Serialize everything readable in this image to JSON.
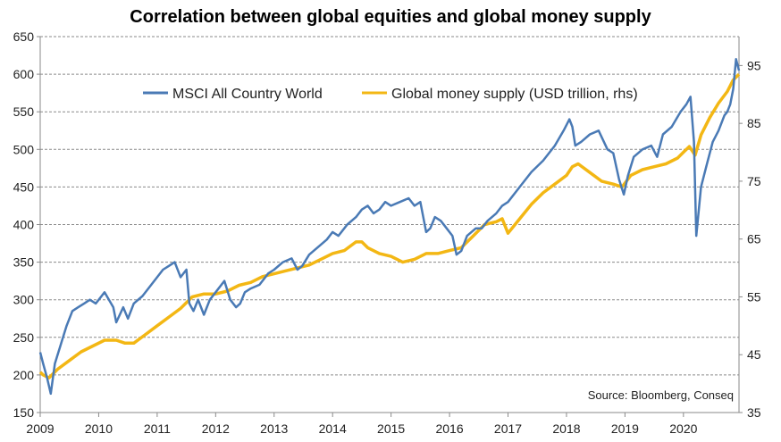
{
  "chart_data": {
    "type": "line",
    "title": "Correlation between global equities and global money supply",
    "source": "Source: Bloomberg, Conseq",
    "xlim": [
      2009,
      2020.95
    ],
    "ylim_left": [
      150,
      650
    ],
    "ylim_right": [
      35,
      100
    ],
    "x_ticks": [
      2009,
      2010,
      2011,
      2012,
      2013,
      2014,
      2015,
      2016,
      2017,
      2018,
      2019,
      2020
    ],
    "y_left_ticks": [
      150,
      200,
      250,
      300,
      350,
      400,
      450,
      500,
      550,
      600,
      650
    ],
    "y_right_ticks": [
      35,
      45,
      55,
      65,
      75,
      85,
      95
    ],
    "grid": "horizontal-dashed",
    "legend_position": "top-left",
    "colors": {
      "msci": "#4a7ab5",
      "money": "#f3b714",
      "axis": "#8a8a8a",
      "grid": "#8a8a8a"
    },
    "series": [
      {
        "name": "MSCI All Country World",
        "axis": "left",
        "x": [
          2009.0,
          2009.05,
          2009.12,
          2009.18,
          2009.25,
          2009.35,
          2009.45,
          2009.55,
          2009.65,
          2009.75,
          2009.85,
          2009.95,
          2010.1,
          2010.25,
          2010.3,
          2010.42,
          2010.5,
          2010.6,
          2010.75,
          2010.9,
          2011.0,
          2011.1,
          2011.2,
          2011.3,
          2011.4,
          2011.5,
          2011.55,
          2011.62,
          2011.7,
          2011.8,
          2011.9,
          2012.0,
          2012.15,
          2012.25,
          2012.35,
          2012.42,
          2012.5,
          2012.6,
          2012.75,
          2012.9,
          2013.0,
          2013.15,
          2013.3,
          2013.4,
          2013.48,
          2013.6,
          2013.75,
          2013.9,
          2014.0,
          2014.1,
          2014.25,
          2014.4,
          2014.5,
          2014.6,
          2014.7,
          2014.8,
          2014.9,
          2015.0,
          2015.15,
          2015.3,
          2015.4,
          2015.5,
          2015.6,
          2015.67,
          2015.75,
          2015.85,
          2015.95,
          2016.05,
          2016.12,
          2016.2,
          2016.3,
          2016.45,
          2016.55,
          2016.65,
          2016.8,
          2016.9,
          2017.0,
          2017.2,
          2017.4,
          2017.6,
          2017.8,
          2017.95,
          2018.05,
          2018.1,
          2018.15,
          2018.25,
          2018.4,
          2018.55,
          2018.7,
          2018.8,
          2018.9,
          2018.98,
          2019.05,
          2019.15,
          2019.3,
          2019.45,
          2019.55,
          2019.65,
          2019.8,
          2019.95,
          2020.05,
          2020.12,
          2020.18,
          2020.22,
          2020.3,
          2020.4,
          2020.5,
          2020.6,
          2020.7,
          2020.75,
          2020.8,
          2020.85,
          2020.9,
          2020.95
        ],
        "values": [
          230,
          215,
          195,
          175,
          215,
          240,
          265,
          285,
          290,
          295,
          300,
          295,
          310,
          290,
          270,
          290,
          275,
          295,
          305,
          320,
          330,
          340,
          345,
          350,
          330,
          340,
          295,
          285,
          300,
          280,
          300,
          310,
          325,
          300,
          290,
          295,
          310,
          315,
          320,
          335,
          340,
          350,
          355,
          340,
          345,
          360,
          370,
          380,
          390,
          385,
          400,
          410,
          420,
          425,
          415,
          420,
          430,
          425,
          430,
          435,
          425,
          430,
          390,
          395,
          410,
          405,
          395,
          385,
          360,
          365,
          385,
          395,
          395,
          405,
          415,
          425,
          430,
          450,
          470,
          485,
          505,
          525,
          540,
          530,
          505,
          510,
          520,
          525,
          500,
          495,
          460,
          440,
          465,
          490,
          500,
          505,
          490,
          520,
          530,
          550,
          560,
          570,
          510,
          385,
          450,
          480,
          510,
          525,
          545,
          550,
          560,
          580,
          620,
          605
        ]
      },
      {
        "name": "Global money supply (USD trillion, rhs)",
        "axis": "right",
        "x": [
          2009.0,
          2009.05,
          2009.15,
          2009.3,
          2009.5,
          2009.7,
          2009.9,
          2010.1,
          2010.3,
          2010.45,
          2010.6,
          2010.8,
          2011.0,
          2011.2,
          2011.4,
          2011.6,
          2011.8,
          2012.0,
          2012.2,
          2012.4,
          2012.6,
          2012.8,
          2013.0,
          2013.2,
          2013.4,
          2013.6,
          2013.8,
          2014.0,
          2014.2,
          2014.4,
          2014.5,
          2014.6,
          2014.8,
          2015.0,
          2015.2,
          2015.4,
          2015.6,
          2015.8,
          2016.0,
          2016.2,
          2016.4,
          2016.6,
          2016.8,
          2016.9,
          2017.0,
          2017.2,
          2017.4,
          2017.6,
          2017.8,
          2018.0,
          2018.1,
          2018.2,
          2018.4,
          2018.6,
          2018.8,
          2018.95,
          2019.1,
          2019.3,
          2019.5,
          2019.7,
          2019.9,
          2020.0,
          2020.1,
          2020.2,
          2020.3,
          2020.45,
          2020.6,
          2020.75,
          2020.85,
          2020.95
        ],
        "values": [
          42.0,
          41.5,
          41.0,
          42.5,
          44.0,
          45.5,
          46.5,
          47.5,
          47.5,
          47.0,
          47.0,
          48.5,
          50.0,
          51.5,
          53.0,
          55.0,
          55.5,
          55.5,
          56.0,
          57.0,
          57.5,
          58.5,
          59.0,
          59.5,
          60.0,
          60.5,
          61.5,
          62.5,
          63.0,
          64.5,
          64.5,
          63.5,
          62.5,
          62.0,
          61.0,
          61.5,
          62.5,
          62.5,
          63.0,
          63.5,
          65.5,
          67.5,
          68.0,
          68.5,
          66.0,
          68.5,
          71.0,
          73.0,
          74.5,
          76.0,
          77.5,
          78.0,
          76.5,
          75.0,
          74.5,
          74.0,
          76.0,
          77.0,
          77.5,
          78.0,
          79.0,
          80.0,
          81.0,
          79.5,
          83.0,
          86.0,
          88.5,
          90.5,
          92.5,
          93.5
        ]
      }
    ]
  }
}
